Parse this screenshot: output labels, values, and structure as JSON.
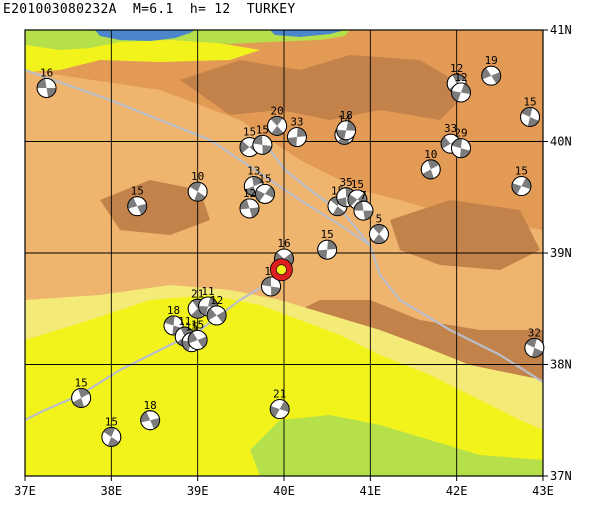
{
  "title": "E201003080232A  M=6.1  h= 12  TURKEY",
  "colors": {
    "sea": "#4a86c9",
    "low_green": "#b6e04a",
    "bright_yellow": "#f3f31c",
    "pale_yellow": "#f4ea78",
    "tan": "#efb46e",
    "orange": "#e29a55",
    "dark_brown": "#c3824a",
    "grid": "#000000",
    "plate_boundary": "#b9bec9",
    "mainshock": "#dd1f1f",
    "beachball_dark": "#7c7c7c",
    "beachball_light": "#ffffff"
  },
  "axes": {
    "lon_range": [
      37,
      43
    ],
    "lat_range": [
      37,
      41
    ],
    "x_ticks": [
      "37E",
      "38E",
      "39E",
      "40E",
      "41E",
      "42E",
      "43E"
    ],
    "y_ticks": [
      "41N",
      "40N",
      "39N",
      "38N",
      "37N"
    ]
  },
  "mainshock": {
    "lon": 39.97,
    "lat": 38.85
  },
  "events": [
    {
      "label": "16",
      "lon": 37.25,
      "lat": 40.48
    },
    {
      "label": "20",
      "lon": 39.92,
      "lat": 40.14
    },
    {
      "label": "33",
      "lon": 40.15,
      "lat": 40.04
    },
    {
      "label": "15",
      "lon": 39.6,
      "lat": 39.95
    },
    {
      "label": "15",
      "lon": 39.75,
      "lat": 39.97
    },
    {
      "label": "14",
      "lon": 40.7,
      "lat": 40.06
    },
    {
      "label": "18",
      "lon": 40.72,
      "lat": 40.1
    },
    {
      "label": "33",
      "lon": 41.93,
      "lat": 39.98
    },
    {
      "label": "29",
      "lon": 42.05,
      "lat": 39.94
    },
    {
      "label": "12",
      "lon": 42.0,
      "lat": 40.52
    },
    {
      "label": "12",
      "lon": 42.05,
      "lat": 40.44
    },
    {
      "label": "19",
      "lon": 42.4,
      "lat": 40.59
    },
    {
      "label": "15",
      "lon": 42.85,
      "lat": 40.22
    },
    {
      "label": "10",
      "lon": 41.7,
      "lat": 39.75
    },
    {
      "label": "15",
      "lon": 42.75,
      "lat": 39.6
    },
    {
      "label": "15",
      "lon": 38.3,
      "lat": 39.42
    },
    {
      "label": "10",
      "lon": 39.0,
      "lat": 39.55
    },
    {
      "label": "13",
      "lon": 39.65,
      "lat": 39.6
    },
    {
      "label": "15",
      "lon": 39.78,
      "lat": 39.53
    },
    {
      "label": "12",
      "lon": 39.6,
      "lat": 39.4
    },
    {
      "label": "15",
      "lon": 40.62,
      "lat": 39.42
    },
    {
      "label": "35",
      "lon": 40.72,
      "lat": 39.5
    },
    {
      "label": "15",
      "lon": 40.85,
      "lat": 39.48
    },
    {
      "label": "7",
      "lon": 40.92,
      "lat": 39.38
    },
    {
      "label": "5",
      "lon": 41.1,
      "lat": 39.17
    },
    {
      "label": "15",
      "lon": 40.5,
      "lat": 39.03
    },
    {
      "label": "16",
      "lon": 40.0,
      "lat": 38.95
    },
    {
      "label": "10",
      "lon": 39.85,
      "lat": 38.7
    },
    {
      "label": "21",
      "lon": 39.0,
      "lat": 38.5
    },
    {
      "label": "11",
      "lon": 39.12,
      "lat": 38.52
    },
    {
      "label": "12",
      "lon": 39.22,
      "lat": 38.44
    },
    {
      "label": "18",
      "lon": 38.72,
      "lat": 38.35
    },
    {
      "label": "11",
      "lon": 38.85,
      "lat": 38.25
    },
    {
      "label": "15",
      "lon": 38.93,
      "lat": 38.2
    },
    {
      "label": "15",
      "lon": 39.0,
      "lat": 38.22
    },
    {
      "label": "32",
      "lon": 42.9,
      "lat": 38.15
    },
    {
      "label": "15",
      "lon": 37.65,
      "lat": 37.7
    },
    {
      "label": "21",
      "lon": 39.95,
      "lat": 37.6
    },
    {
      "label": "18",
      "lon": 38.45,
      "lat": 37.5
    },
    {
      "label": "15",
      "lon": 38.0,
      "lat": 37.35
    }
  ]
}
